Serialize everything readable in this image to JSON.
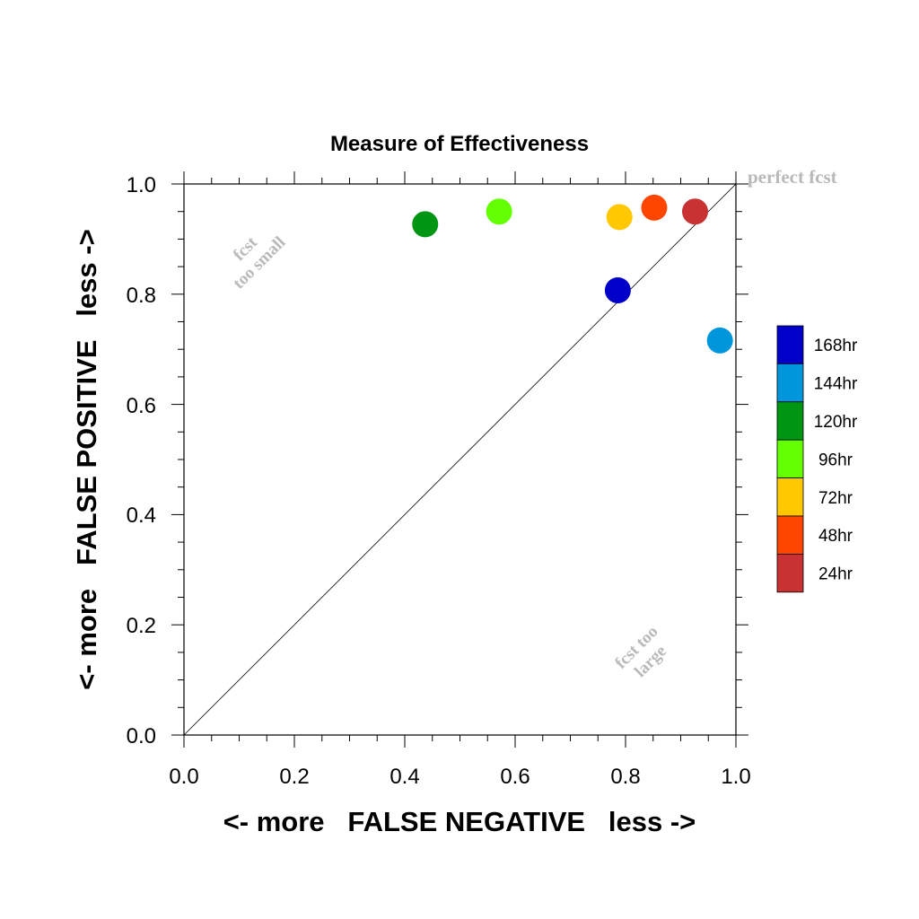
{
  "chart_data": {
    "type": "scatter",
    "title": "Measure of Effectiveness",
    "xlabel": "<- more   FALSE NEGATIVE   less ->",
    "ylabel": "<- more   FALSE POSITIVE   less ->",
    "xlim": [
      0,
      1
    ],
    "ylim": [
      0,
      1
    ],
    "x_ticks": [
      "0.0",
      "0.2",
      "0.4",
      "0.6",
      "0.8",
      "1.0"
    ],
    "y_ticks": [
      "0.0",
      "0.2",
      "0.4",
      "0.6",
      "0.8",
      "1.0"
    ],
    "grid": false,
    "reference_line": "diagonal from (0,0) to (1,1)",
    "legend_position": "right",
    "annotations": {
      "perfect": "perfect fcst",
      "small_line1": "fcst",
      "small_line2": "too small",
      "large_line1": "fcst too",
      "large_line2": "large"
    },
    "series": [
      {
        "name": "168hr",
        "color": "#0000c8",
        "x": 0.786,
        "y": 0.807
      },
      {
        "name": "144hr",
        "color": "#0096dc",
        "x": 0.971,
        "y": 0.716
      },
      {
        "name": "120hr",
        "color": "#009614",
        "x": 0.437,
        "y": 0.927
      },
      {
        "name": "96hr",
        "color": "#64ff00",
        "x": 0.571,
        "y": 0.95
      },
      {
        "name": "72hr",
        "color": "#ffc800",
        "x": 0.789,
        "y": 0.94
      },
      {
        "name": "48hr",
        "color": "#ff4600",
        "x": 0.852,
        "y": 0.957
      },
      {
        "name": "24hr",
        "color": "#c83232",
        "x": 0.926,
        "y": 0.95
      }
    ]
  }
}
